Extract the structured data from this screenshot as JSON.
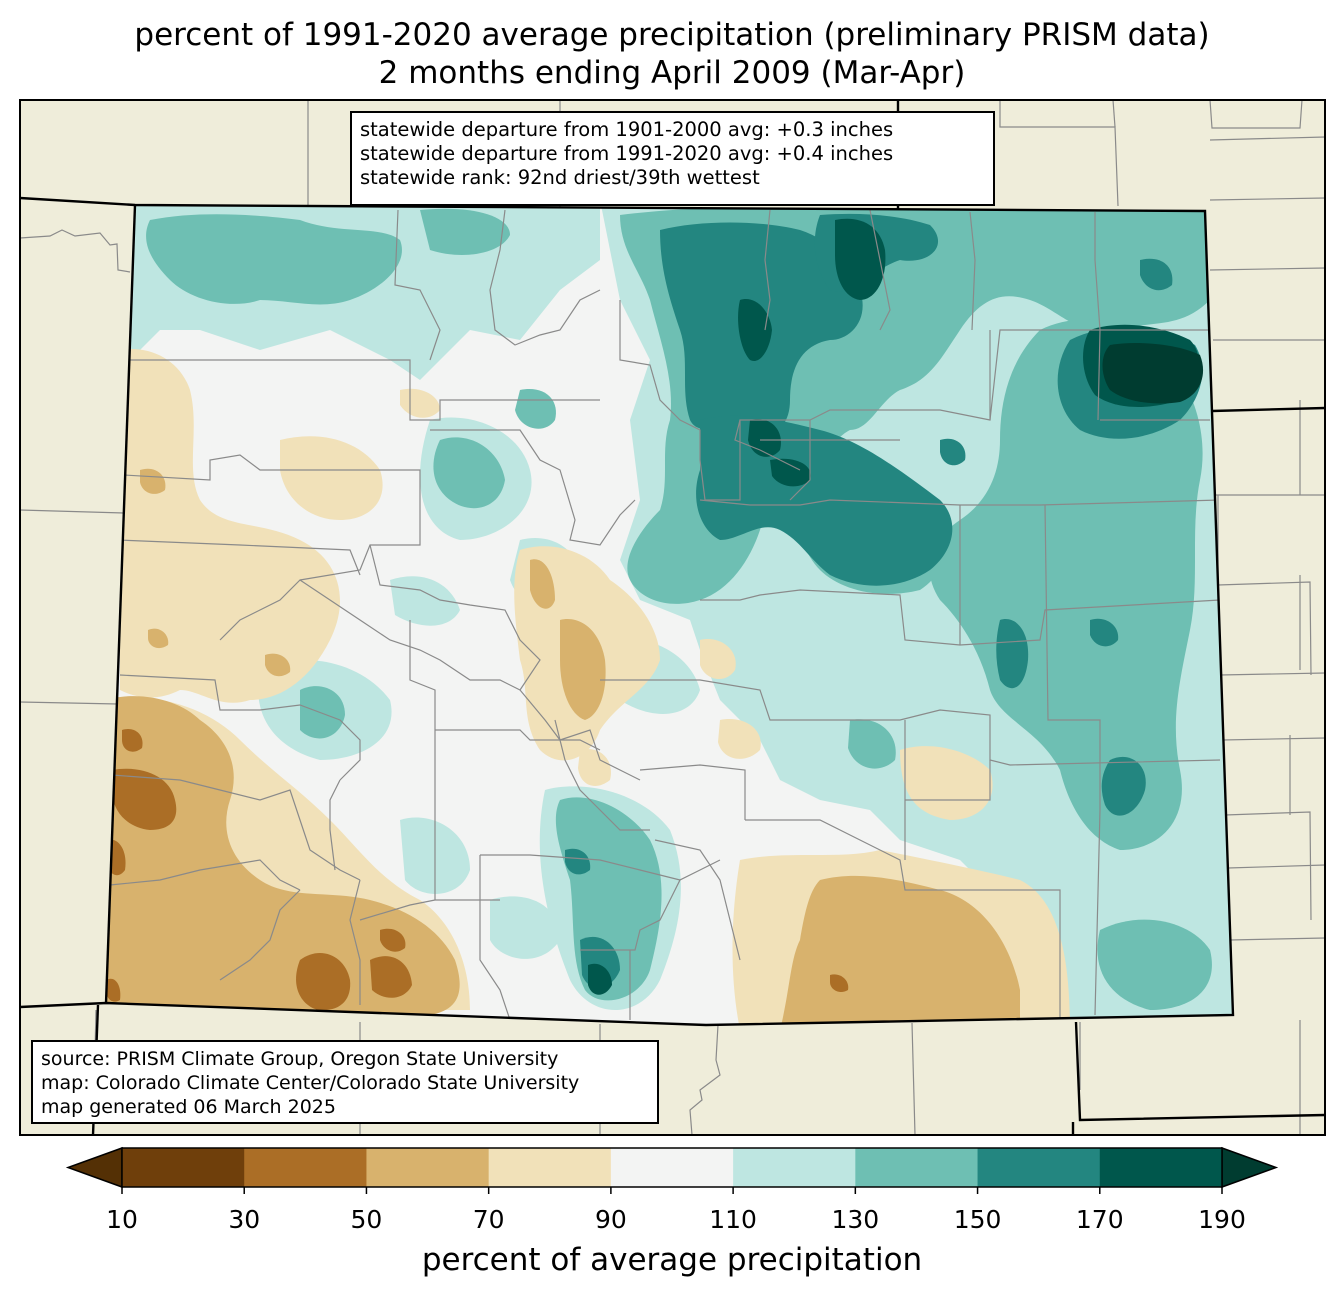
{
  "title": {
    "line1": "percent of 1991-2020 average precipitation (preliminary PRISM data)",
    "line2": "2 months ending April 2009 (Mar-Apr)"
  },
  "stats": {
    "line1": "statewide departure from 1901-2000 avg: +0.3 inches",
    "line2": "statewide departure from 1991-2020 avg: +0.4 inches",
    "line3": "statewide rank: 92nd driest/39th wettest"
  },
  "credits": {
    "line1": "source: PRISM Climate Group, Oregon State University",
    "line2": "map: Colorado Climate Center/Colorado State University",
    "line3": "map generated 06 March 2025"
  },
  "colors": {
    "land": "#efedda",
    "under": "#543005",
    "over": "#003c30",
    "bins": [
      "#6f3f0b",
      "#ab6e26",
      "#d8b26d",
      "#f1e1b9",
      "#f3f4f3",
      "#bee6e1",
      "#6ebfb3",
      "#238680",
      "#00574c"
    ]
  },
  "colorbar": {
    "ticks": [
      10,
      30,
      50,
      70,
      90,
      110,
      130,
      150,
      170,
      190
    ],
    "label": "percent of average precipitation"
  }
}
